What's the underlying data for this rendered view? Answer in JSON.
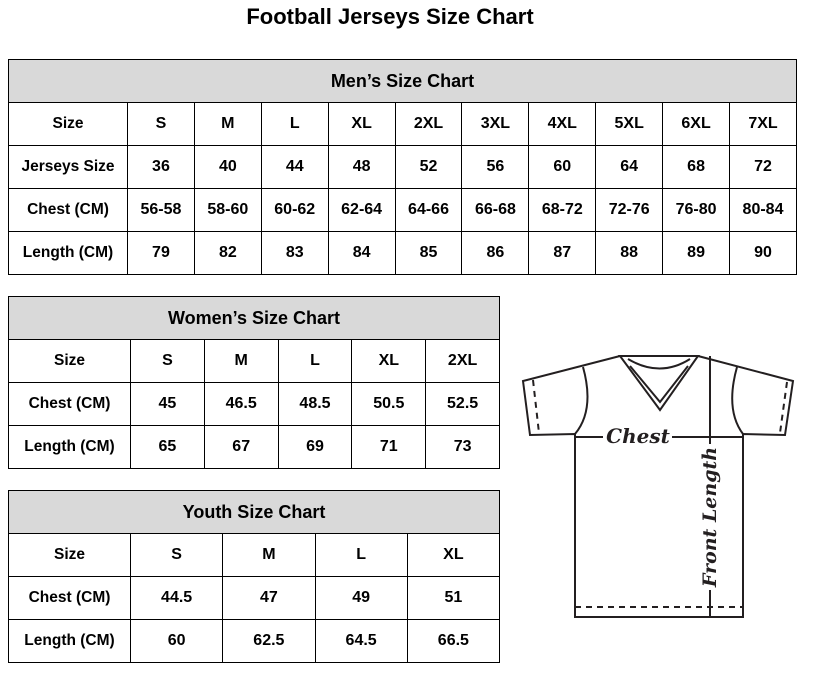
{
  "title": "Football Jerseys Size Chart",
  "men": {
    "title": "Men’s Size Chart",
    "rows": [
      {
        "label": "Size",
        "values": [
          "S",
          "M",
          "L",
          "XL",
          "2XL",
          "3XL",
          "4XL",
          "5XL",
          "6XL",
          "7XL"
        ]
      },
      {
        "label": "Jerseys Size",
        "values": [
          "36",
          "40",
          "44",
          "48",
          "52",
          "56",
          "60",
          "64",
          "68",
          "72"
        ]
      },
      {
        "label": "Chest (CM)",
        "values": [
          "56-58",
          "58-60",
          "60-62",
          "62-64",
          "64-66",
          "66-68",
          "68-72",
          "72-76",
          "76-80",
          "80-84"
        ]
      },
      {
        "label": "Length (CM)",
        "values": [
          "79",
          "82",
          "83",
          "84",
          "85",
          "86",
          "87",
          "88",
          "89",
          "90"
        ]
      }
    ]
  },
  "women": {
    "title": "Women’s Size Chart",
    "rows": [
      {
        "label": "Size",
        "values": [
          "S",
          "M",
          "L",
          "XL",
          "2XL"
        ]
      },
      {
        "label": "Chest (CM)",
        "values": [
          "45",
          "46.5",
          "48.5",
          "50.5",
          "52.5"
        ]
      },
      {
        "label": "Length (CM)",
        "values": [
          "65",
          "67",
          "69",
          "71",
          "73"
        ]
      }
    ]
  },
  "youth": {
    "title": "Youth Size Chart",
    "rows": [
      {
        "label": "Size",
        "values": [
          "S",
          "M",
          "L",
          "XL"
        ]
      },
      {
        "label": "Chest (CM)",
        "values": [
          "44.5",
          "47",
          "49",
          "51"
        ]
      },
      {
        "label": "Length (CM)",
        "values": [
          "60",
          "62.5",
          "64.5",
          "66.5"
        ]
      }
    ]
  },
  "diagram": {
    "chest_label": "Chest",
    "length_label": "Front Length"
  },
  "colors": {
    "header_bg": "#d9d9d9",
    "border": "#000000"
  }
}
